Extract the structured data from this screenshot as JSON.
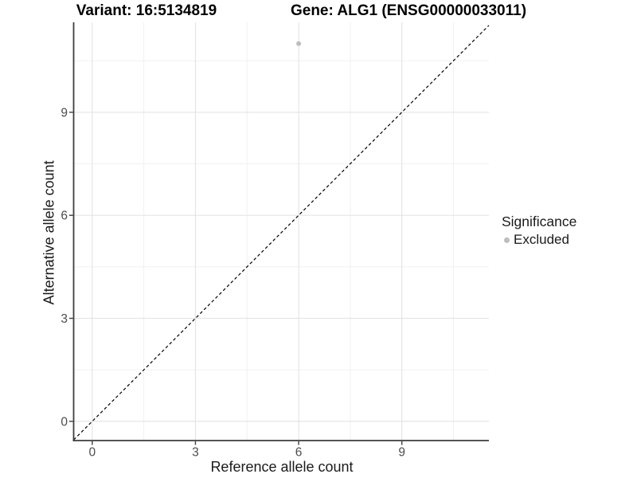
{
  "titles": {
    "variant": "Variant: 16:5134819",
    "gene": "Gene: ALG1 (ENSG00000033011)"
  },
  "chart_data": {
    "type": "scatter",
    "xlabel": "Reference allele count",
    "ylabel": "Alternative allele count",
    "xlim": [
      -0.54,
      11.53
    ],
    "ylim": [
      -0.56,
      11.62
    ],
    "xticks": [
      0,
      3,
      6,
      9
    ],
    "yticks": [
      0,
      3,
      6,
      9
    ],
    "xminor": [
      1.5,
      4.5,
      7.5,
      10.5
    ],
    "yminor": [
      1.5,
      4.5,
      7.5,
      10.5
    ],
    "grid": "major and minor gridlines on white panel",
    "identity_line": {
      "slope": 1,
      "intercept": 0,
      "linetype": "dashed",
      "color": "#000000"
    },
    "series": [
      {
        "name": "Excluded",
        "color": "#bdbdbd",
        "points": [
          {
            "x": 6,
            "y": 11
          }
        ]
      }
    ],
    "legend": {
      "title": "Significance",
      "position": "right",
      "items": [
        {
          "label": "Excluded",
          "color": "#bdbdbd"
        }
      ]
    }
  },
  "colors": {
    "background": "#ffffff",
    "grid_major": "#e3e3e3",
    "grid_minor": "#f1f1f1",
    "axis_line": "#3d3d3d",
    "tick_label": "#4d4d4d",
    "point": "#bdbdbd"
  }
}
